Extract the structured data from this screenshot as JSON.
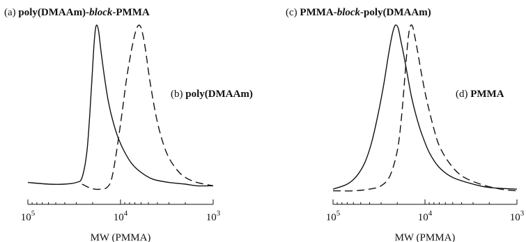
{
  "chart_data": [
    {
      "type": "line",
      "title_prefix": "(a)",
      "title_parts": [
        {
          "text": "poly(DMAAm)-",
          "italic": false
        },
        {
          "text": "block",
          "italic": true
        },
        {
          "text": "-PMMA",
          "italic": false
        }
      ],
      "annotation": {
        "prefix": "(b)",
        "text": "poly(DMAAm)"
      },
      "xlabel": "MW (PMMA)",
      "xscale": "log",
      "xaxis_reversed": true,
      "xlim": [
        100000,
        1000
      ],
      "xticks": [
        {
          "value": 100000,
          "base": "10",
          "exp": "5"
        },
        {
          "value": 10000,
          "base": "10",
          "exp": "4"
        },
        {
          "value": 1000,
          "base": "10",
          "exp": "3"
        }
      ],
      "ylim": [
        0,
        1
      ],
      "series": [
        {
          "style": "solid",
          "x": [
            100000,
            60000,
            40000,
            30000,
            26000,
            23000,
            21000,
            19500,
            18700,
            18000,
            17200,
            16200,
            15000,
            13500,
            12000,
            10500,
            9000,
            7500,
            6000,
            4500,
            3000,
            2000,
            1500,
            1000
          ],
          "y": [
            0.06,
            0.05,
            0.05,
            0.06,
            0.09,
            0.25,
            0.55,
            0.85,
            0.97,
            1.0,
            0.96,
            0.84,
            0.7,
            0.54,
            0.42,
            0.32,
            0.24,
            0.17,
            0.12,
            0.08,
            0.06,
            0.05,
            0.04,
            0.04
          ]
        },
        {
          "style": "dashed",
          "x": [
            26000,
            22000,
            19000,
            16000,
            14000,
            12500,
            11000,
            9500,
            8500,
            7500,
            6800,
            6300,
            5900,
            5400,
            4800,
            4000,
            3200,
            2500,
            2000,
            1500,
            1000
          ],
          "y": [
            0.05,
            0.03,
            0.02,
            0.02,
            0.03,
            0.08,
            0.25,
            0.5,
            0.7,
            0.87,
            0.97,
            1.0,
            0.97,
            0.86,
            0.66,
            0.42,
            0.24,
            0.14,
            0.09,
            0.06,
            0.04
          ]
        }
      ]
    },
    {
      "type": "line",
      "title_prefix": "(c)",
      "title_parts": [
        {
          "text": "PMMA-",
          "italic": false
        },
        {
          "text": "block",
          "italic": true
        },
        {
          "text": "-poly(DMAAm)",
          "italic": false
        }
      ],
      "annotation": {
        "prefix": "(d)",
        "text": "PMMA"
      },
      "xlabel": "MW (PMMA)",
      "xscale": "log",
      "xaxis_reversed": true,
      "xlim": [
        100000,
        1000
      ],
      "xticks": [
        {
          "value": 100000,
          "base": "10",
          "exp": "5"
        },
        {
          "value": 10000,
          "base": "10",
          "exp": "4"
        },
        {
          "value": 1000,
          "base": "10",
          "exp": "3"
        }
      ],
      "ylim": [
        0,
        1
      ],
      "series": [
        {
          "style": "solid",
          "x": [
            100000,
            70000,
            55000,
            45000,
            38000,
            32000,
            28000,
            25000,
            23000,
            21500,
            20500,
            19500,
            18500,
            17000,
            15500,
            14000,
            12500,
            11000,
            9000,
            7000,
            5000,
            3000,
            2000,
            1000
          ],
          "y": [
            0.02,
            0.05,
            0.1,
            0.18,
            0.3,
            0.48,
            0.65,
            0.82,
            0.93,
            0.99,
            1.0,
            0.98,
            0.92,
            0.82,
            0.7,
            0.57,
            0.46,
            0.36,
            0.24,
            0.15,
            0.09,
            0.05,
            0.03,
            0.02
          ]
        },
        {
          "style": "dashed",
          "x": [
            100000,
            60000,
            40000,
            30000,
            24000,
            20000,
            18000,
            16500,
            15500,
            14800,
            14200,
            13600,
            13000,
            12000,
            11000,
            10000,
            9000,
            8000,
            7000,
            5500,
            4000,
            2500,
            1500,
            1000
          ],
          "y": [
            0.01,
            0.01,
            0.02,
            0.04,
            0.1,
            0.25,
            0.45,
            0.7,
            0.88,
            0.97,
            1.0,
            0.99,
            0.94,
            0.84,
            0.72,
            0.6,
            0.49,
            0.38,
            0.28,
            0.18,
            0.1,
            0.05,
            0.02,
            0.01
          ]
        }
      ]
    }
  ]
}
